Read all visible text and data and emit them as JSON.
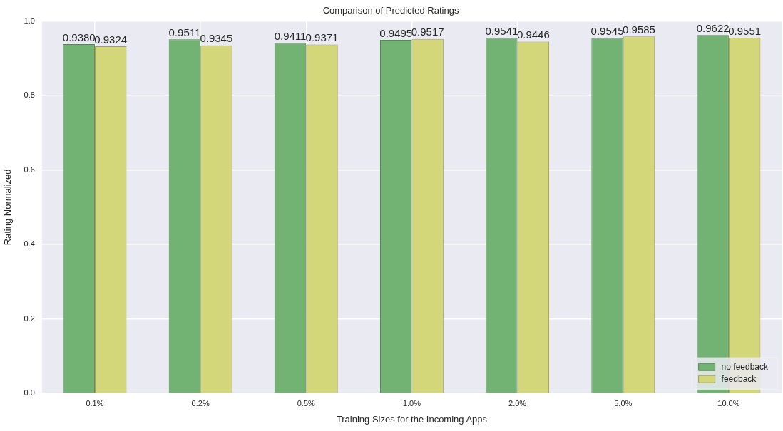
{
  "chart_data": {
    "type": "bar",
    "title": "Comparison of Predicted Ratings",
    "xlabel": "Training Sizes for the Incoming Apps",
    "ylabel": "Rating Normalized",
    "categories": [
      "0.1%",
      "0.2%",
      "0.5%",
      "1.0%",
      "2.0%",
      "5.0%",
      "10.0%"
    ],
    "series": [
      {
        "name": "no feedback",
        "color": "#72b373",
        "values": [
          0.938,
          0.9511,
          0.9411,
          0.9495,
          0.9541,
          0.9545,
          0.9622
        ],
        "value_labels": [
          "0.9380",
          "0.9511",
          "0.9411",
          "0.9495",
          "0.9541",
          "0.9545",
          "0.9622"
        ]
      },
      {
        "name": "feedback",
        "color": "#d4d67a",
        "values": [
          0.9324,
          0.9345,
          0.9371,
          0.9517,
          0.9446,
          0.9585,
          0.9551
        ],
        "value_labels": [
          "0.9324",
          "0.9345",
          "0.9371",
          "0.9517",
          "0.9446",
          "0.9585",
          "0.9551"
        ]
      }
    ],
    "ylim": [
      0,
      1
    ],
    "yticks": [
      {
        "value": 0,
        "label": "0.0"
      },
      0.2,
      0.4,
      0.6,
      0.8,
      {
        "value": 1,
        "label": "1.0"
      }
    ],
    "grid": true,
    "legend": "bottom right"
  }
}
